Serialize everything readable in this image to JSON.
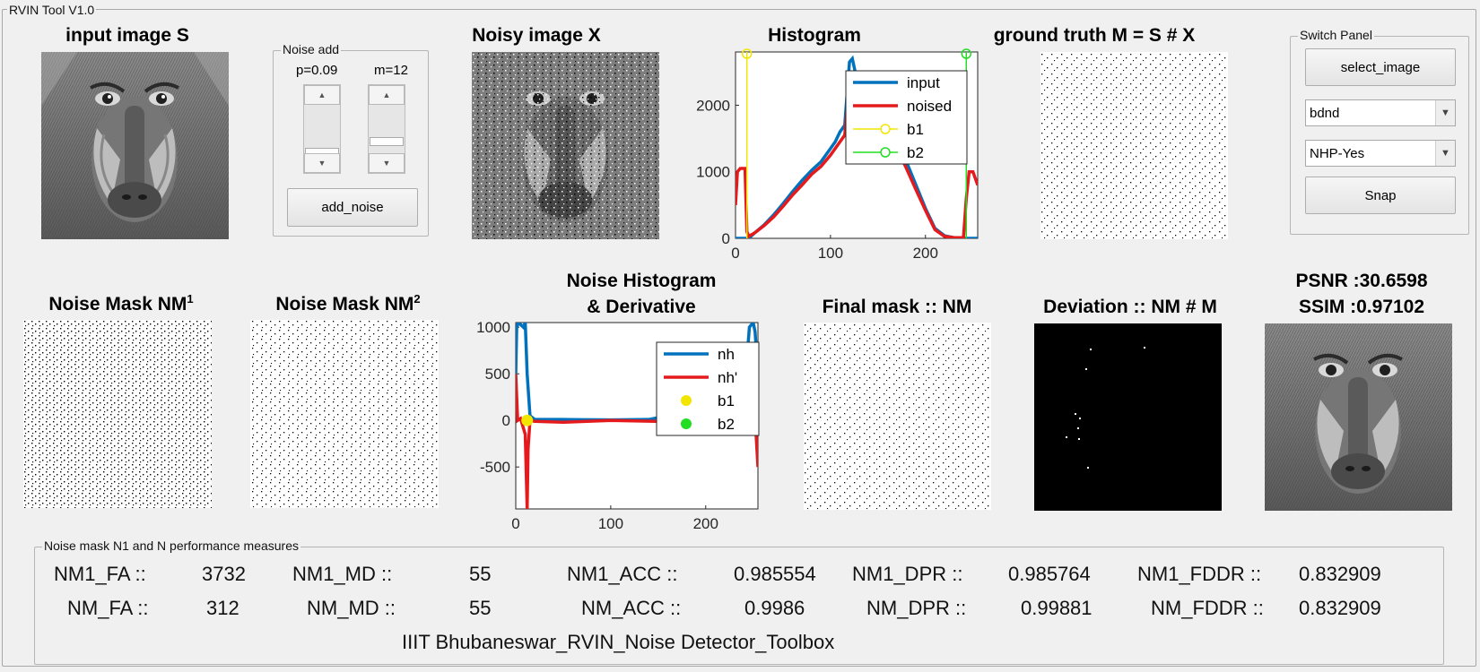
{
  "window": {
    "title": "RVIN Tool V1.0"
  },
  "panels": {
    "input_title": "input image S",
    "noisy_title": "Noisy image X",
    "histogram_title": "Histogram",
    "ground_truth_title": "ground truth M = S # X",
    "nm1_title": "Noise Mask NM",
    "nm1_sup": "1",
    "nm2_title": "Noise Mask NM",
    "nm2_sup": "2",
    "nh_title_line1": "Noise Histogram",
    "nh_title_line2": "& Derivative",
    "final_mask_title": "Final mask :: NM",
    "deviation_title": "Deviation :: NM # M",
    "psnr_text": "PSNR :30.6598",
    "ssim_text": "SSIM :0.97102"
  },
  "noise_add": {
    "group_title": "Noise add",
    "p_label": "p=0.09",
    "m_label": "m=12",
    "p_level": 0.09,
    "m_level": 12,
    "add_button": "add_noise"
  },
  "switch_panel": {
    "title": "Switch Panel",
    "select_button": "select_image",
    "method_value": "bdnd",
    "nhp_value": "NHP-Yes",
    "snap_button": "Snap"
  },
  "performance": {
    "group_title": "Noise mask N1 and N performance measures",
    "rows": [
      {
        "fa_label": "NM1_FA ::",
        "fa": "3732",
        "md_label": "NM1_MD ::",
        "md": "55",
        "acc_label": "NM1_ACC ::",
        "acc": "0.985554",
        "dpr_label": "NM1_DPR ::",
        "dpr": "0.985764",
        "fddr_label": "NM1_FDDR ::",
        "fddr": "0.832909"
      },
      {
        "fa_label": "NM_FA ::",
        "fa": "312",
        "md_label": "NM_MD ::",
        "md": "55",
        "acc_label": "NM_ACC ::",
        "acc": "0.9986",
        "dpr_label": "NM_DPR ::",
        "dpr": "0.99881",
        "fddr_label": "NM_FDDR ::",
        "fddr": "0.832909"
      }
    ],
    "footer": "IIIT Bhubaneswar_RVIN_Noise Detector_Toolbox"
  },
  "chart_data": [
    {
      "type": "line",
      "title": "Histogram",
      "xlim": [
        0,
        255
      ],
      "ylim": [
        0,
        2800
      ],
      "xticks": [
        0,
        100,
        200
      ],
      "yticks": [
        0,
        1000,
        2000
      ],
      "legend": "top-right",
      "series": [
        {
          "name": "input",
          "color": "#0072bd",
          "x": [
            0,
            10,
            11,
            14,
            20,
            30,
            40,
            50,
            60,
            70,
            80,
            90,
            100,
            105,
            110,
            115,
            120,
            123,
            126,
            130,
            135,
            140,
            150,
            160,
            170,
            180,
            190,
            200,
            210,
            220,
            230,
            240,
            250,
            255
          ],
          "y": [
            0,
            0,
            0,
            0,
            80,
            200,
            350,
            520,
            700,
            870,
            1020,
            1150,
            1350,
            1450,
            1600,
            1700,
            2650,
            2700,
            2500,
            2450,
            2400,
            2300,
            2000,
            1750,
            1450,
            1150,
            800,
            450,
            150,
            40,
            10,
            0,
            0,
            0
          ]
        },
        {
          "name": "noised",
          "color": "#e41a1c",
          "x": [
            0,
            2,
            5,
            10,
            12,
            14,
            20,
            30,
            40,
            50,
            60,
            70,
            80,
            90,
            100,
            110,
            115,
            120,
            123,
            126,
            130,
            140,
            150,
            160,
            170,
            180,
            190,
            200,
            210,
            220,
            230,
            240,
            243,
            246,
            250,
            255
          ],
          "y": [
            500,
            1000,
            1050,
            1050,
            100,
            30,
            80,
            190,
            320,
            480,
            650,
            800,
            960,
            1080,
            1250,
            1450,
            1550,
            2350,
            2450,
            2300,
            2250,
            2100,
            1850,
            1650,
            1350,
            1050,
            730,
            420,
            130,
            30,
            10,
            10,
            600,
            1000,
            1000,
            800
          ]
        },
        {
          "name": "b1",
          "color": "#f2e600",
          "x": [
            12,
            12
          ],
          "y": [
            0,
            2800
          ]
        },
        {
          "name": "b2",
          "color": "#22dd22",
          "x": [
            243,
            243
          ],
          "y": [
            0,
            2800
          ]
        }
      ]
    },
    {
      "type": "line",
      "title": "Noise Histogram & Derivative",
      "xlim": [
        0,
        255
      ],
      "ylim": [
        -950,
        1050
      ],
      "xticks": [
        0,
        100,
        200
      ],
      "yticks": [
        -500,
        0,
        500,
        1000
      ],
      "legend": "top-right",
      "series": [
        {
          "name": "nh",
          "color": "#0072bd",
          "x": [
            0,
            1,
            3,
            5,
            8,
            10,
            12,
            15,
            20,
            50,
            100,
            140,
            150,
            200,
            240,
            243,
            246,
            250,
            252,
            255
          ],
          "y": [
            500,
            1000,
            1050,
            1030,
            1000,
            1050,
            500,
            50,
            10,
            10,
            5,
            10,
            30,
            20,
            30,
            600,
            1000,
            1050,
            950,
            500
          ]
        },
        {
          "name": "nh'",
          "color": "#e41a1c",
          "x": [
            0,
            2,
            5,
            10,
            12,
            13,
            15,
            20,
            50,
            100,
            200,
            238,
            241,
            243,
            246,
            250,
            255
          ],
          "y": [
            500,
            0,
            20,
            -150,
            -950,
            -300,
            0,
            -10,
            -20,
            0,
            -20,
            -20,
            500,
            0,
            450,
            400,
            -500
          ]
        },
        {
          "name": "b1",
          "color": "#f2e600",
          "x": [
            12
          ],
          "y": [
            0
          ]
        },
        {
          "name": "b2",
          "color": "#22dd22",
          "x": [
            243
          ],
          "y": [
            0
          ]
        }
      ]
    }
  ]
}
